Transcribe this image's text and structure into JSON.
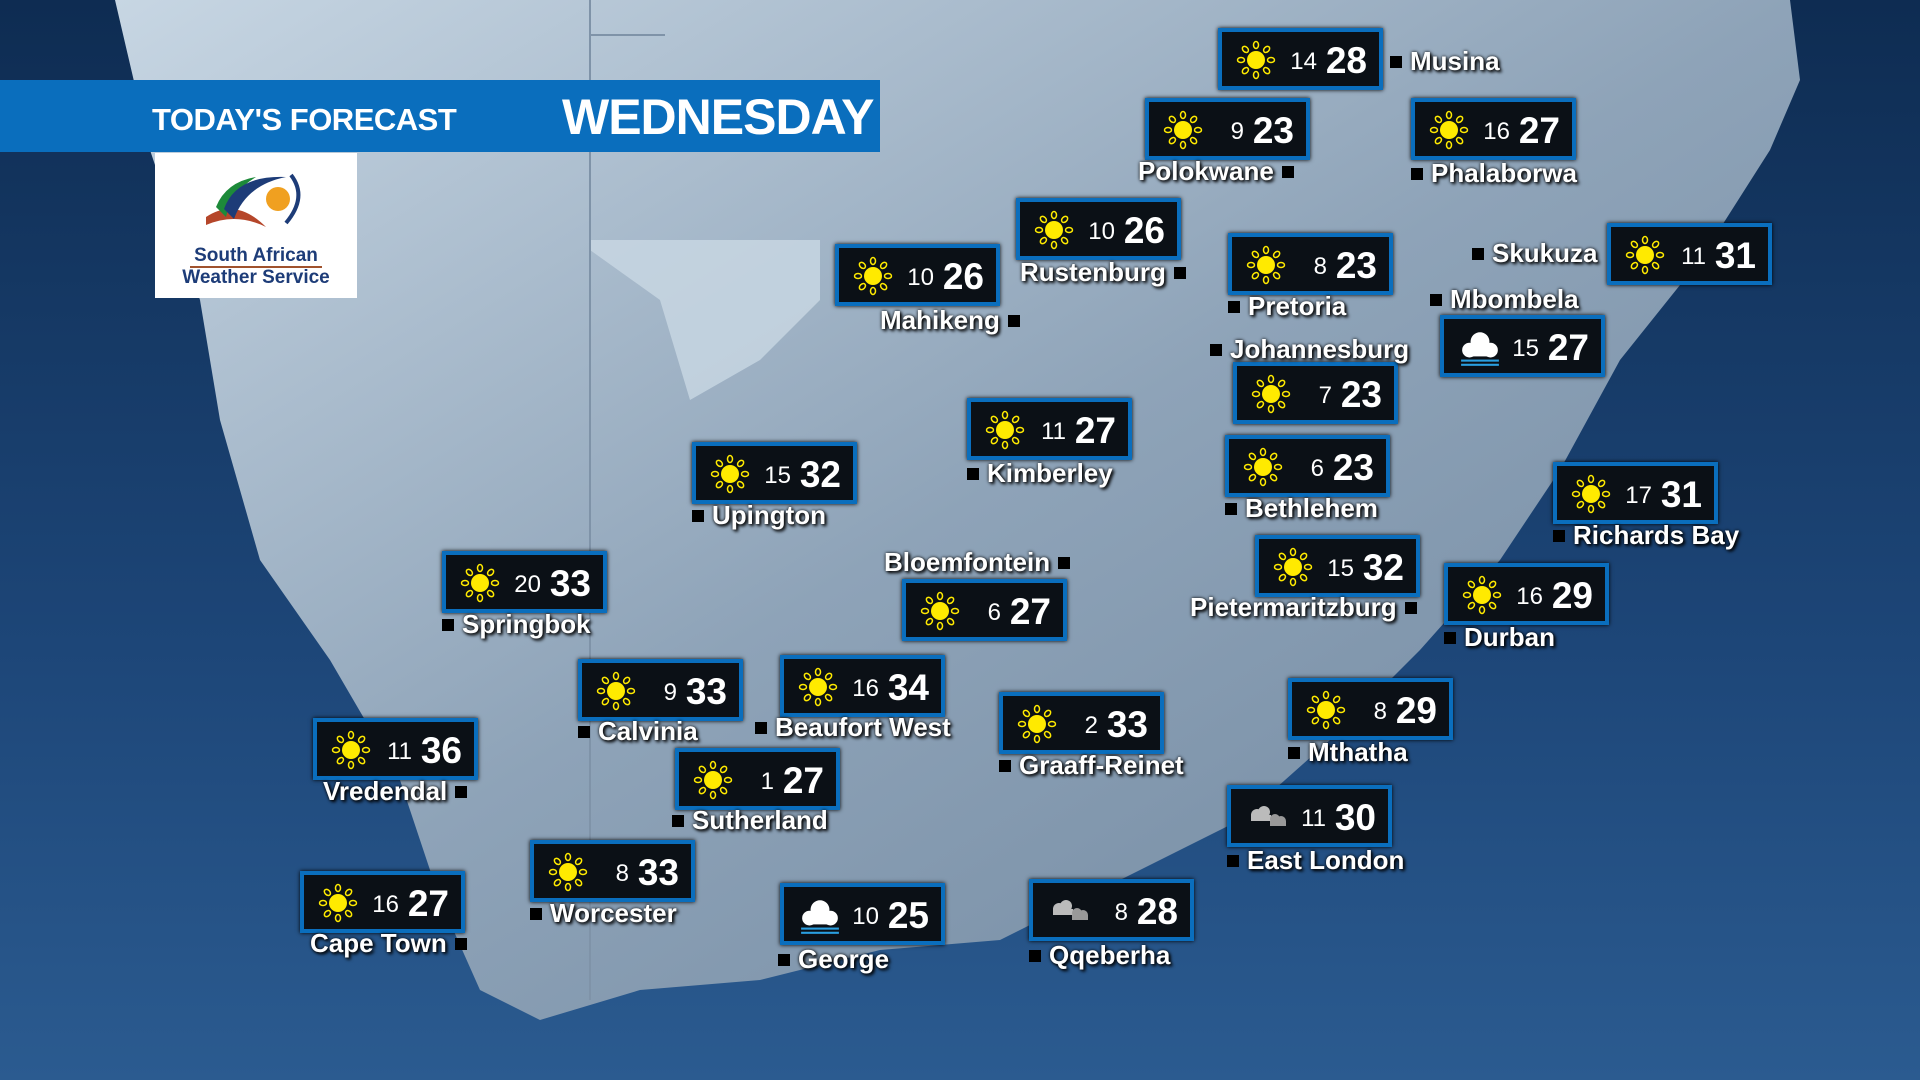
{
  "header": {
    "title": "TODAY'S FORECAST",
    "day": "WEDNESDAY",
    "color": "#0a6ebd"
  },
  "logo": {
    "line1": "South African",
    "line2": "Weather Service"
  },
  "stations": [
    {
      "name": "Musina",
      "min": "14",
      "max": "28",
      "icon": "sun-icon"
    },
    {
      "name": "Polokwane",
      "min": "9",
      "max": "23",
      "icon": "sun-icon"
    },
    {
      "name": "Phalaborwa",
      "min": "16",
      "max": "27",
      "icon": "sun-icon"
    },
    {
      "name": "Rustenburg",
      "min": "10",
      "max": "26",
      "icon": "sun-icon"
    },
    {
      "name": "Pretoria",
      "min": "8",
      "max": "23",
      "icon": "sun-icon"
    },
    {
      "name": "Skukuza",
      "min": "11",
      "max": "31",
      "icon": "sun-icon"
    },
    {
      "name": "Mbombela",
      "min": "15",
      "max": "27",
      "icon": "fog-icon"
    },
    {
      "name": "Johannesburg",
      "min": "7",
      "max": "23",
      "icon": "sun-icon"
    },
    {
      "name": "Mahikeng",
      "min": "10",
      "max": "26",
      "icon": "sun-icon"
    },
    {
      "name": "Kimberley",
      "min": "11",
      "max": "27",
      "icon": "sun-icon"
    },
    {
      "name": "Bethlehem",
      "min": "6",
      "max": "23",
      "icon": "sun-icon"
    },
    {
      "name": "Upington",
      "min": "15",
      "max": "32",
      "icon": "sun-icon"
    },
    {
      "name": "Richards Bay",
      "min": "17",
      "max": "31",
      "icon": "sun-icon"
    },
    {
      "name": "Springbok",
      "min": "20",
      "max": "33",
      "icon": "sun-icon"
    },
    {
      "name": "Bloemfontein",
      "min": "6",
      "max": "27",
      "icon": "sun-icon"
    },
    {
      "name": "Pietermaritzburg",
      "min": "15",
      "max": "32",
      "icon": "sun-icon"
    },
    {
      "name": "Durban",
      "min": "16",
      "max": "29",
      "icon": "sun-icon"
    },
    {
      "name": "Calvinia",
      "min": "9",
      "max": "33",
      "icon": "sun-icon"
    },
    {
      "name": "Beaufort West",
      "min": "16",
      "max": "34",
      "icon": "sun-icon"
    },
    {
      "name": "Graaff-Reinet",
      "min": "2",
      "max": "33",
      "icon": "sun-icon"
    },
    {
      "name": "Mthatha",
      "min": "8",
      "max": "29",
      "icon": "sun-icon"
    },
    {
      "name": "Vredendal",
      "min": "11",
      "max": "36",
      "icon": "sun-icon"
    },
    {
      "name": "Sutherland",
      "min": "1",
      "max": "27",
      "icon": "sun-icon"
    },
    {
      "name": "East London",
      "min": "11",
      "max": "30",
      "icon": "cloudy-icon"
    },
    {
      "name": "Worcester",
      "min": "8",
      "max": "33",
      "icon": "sun-icon"
    },
    {
      "name": "Cape Town",
      "min": "16",
      "max": "27",
      "icon": "sun-icon"
    },
    {
      "name": "George",
      "min": "10",
      "max": "25",
      "icon": "fog-icon"
    },
    {
      "name": "Qqeberha",
      "min": "8",
      "max": "28",
      "icon": "cloudy-icon"
    }
  ]
}
